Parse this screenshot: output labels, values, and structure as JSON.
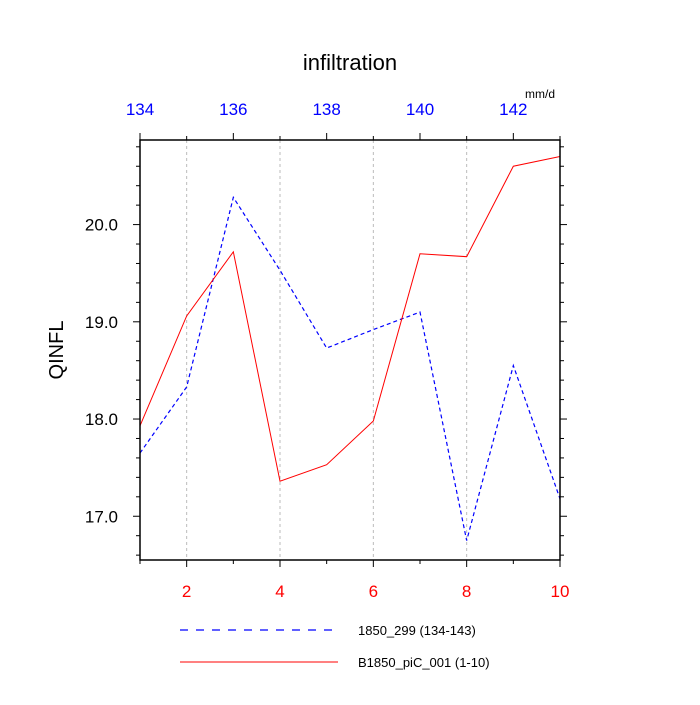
{
  "chart_data": {
    "type": "line",
    "title": "infiltration",
    "ylabel": "QINFL",
    "units": "mm/d",
    "x_bottom": {
      "range": [
        1,
        10
      ],
      "ticks": [
        2,
        4,
        6,
        8,
        10
      ],
      "tick_labels": [
        "2",
        "4",
        "6",
        "8",
        "10"
      ],
      "color": "#ff0000"
    },
    "x_top": {
      "range": [
        134,
        143
      ],
      "ticks": [
        134,
        136,
        138,
        140,
        142
      ],
      "tick_labels": [
        "134",
        "136",
        "138",
        "140",
        "142"
      ],
      "color": "#0000ff"
    },
    "y": {
      "range": [
        16.55,
        20.87
      ],
      "ticks": [
        17,
        18,
        19,
        20
      ],
      "tick_labels": [
        "17.0",
        "18.0",
        "19.0",
        "20.0"
      ],
      "minor_step": 0.2
    },
    "grid": "vertical dashed at bottom major ticks",
    "legend_position": "bottom",
    "series": [
      {
        "name": "1850_299 (134-143)",
        "axis": "top",
        "color": "#0000ff",
        "style": "dashed",
        "x": [
          134,
          135,
          136,
          137,
          138,
          139,
          140,
          141,
          142,
          143
        ],
        "values": [
          17.65,
          18.33,
          20.28,
          19.53,
          18.73,
          18.92,
          19.1,
          16.75,
          18.55,
          17.18
        ]
      },
      {
        "name": "B1850_piC_001 (1-10)",
        "axis": "bottom",
        "color": "#ff0000",
        "style": "solid",
        "x": [
          1,
          2,
          3,
          4,
          5,
          6,
          7,
          8,
          9,
          10
        ],
        "values": [
          17.93,
          19.06,
          19.72,
          17.36,
          17.53,
          17.98,
          19.7,
          19.67,
          20.6,
          20.7
        ]
      }
    ]
  }
}
